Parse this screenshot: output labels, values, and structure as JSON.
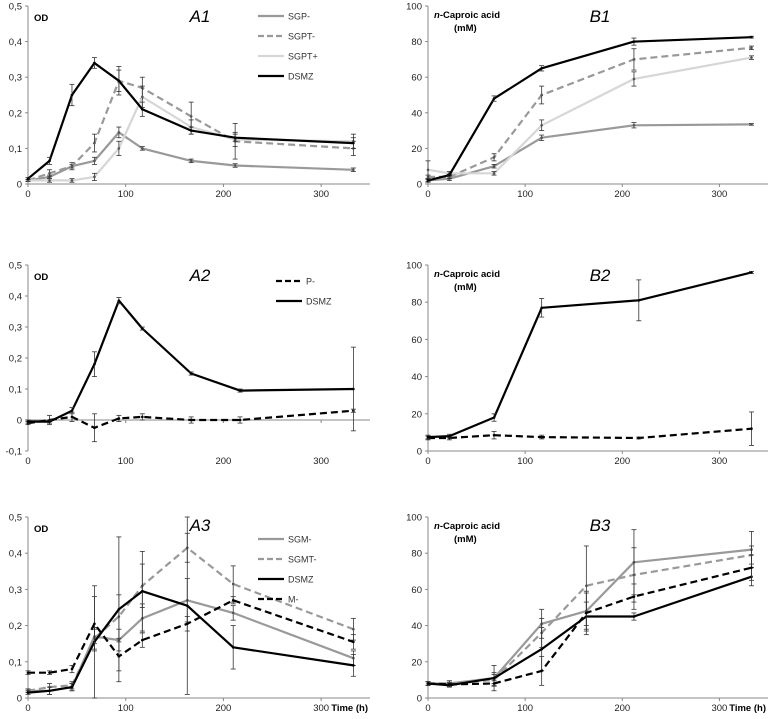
{
  "chart_data": [
    {
      "id": "A1",
      "type": "line",
      "title": "A1",
      "ylabel": "OD",
      "xlabel": "",
      "xlim": [
        0,
        350
      ],
      "ylim": [
        0,
        0.5
      ],
      "xticks": [
        "0",
        "100",
        "200",
        "300"
      ],
      "yticks": [
        "0",
        "0,1",
        "0,2",
        "0,3",
        "0,4",
        "0,5"
      ],
      "legend": "top-right",
      "series": [
        {
          "name": "SGP-",
          "style": "solid-gray",
          "x": [
            0,
            22,
            45,
            68,
            93,
            117,
            167,
            212,
            333
          ],
          "y": [
            0.01,
            0.02,
            0.05,
            0.065,
            0.145,
            0.1,
            0.065,
            0.052,
            0.04
          ],
          "err": [
            0.003,
            0.005,
            0.005,
            0.01,
            0.015,
            0.005,
            0.005,
            0.005,
            0.005
          ]
        },
        {
          "name": "SGPT-",
          "style": "dash-gray",
          "x": [
            0,
            22,
            45,
            68,
            93,
            117,
            167,
            212,
            333
          ],
          "y": [
            0.01,
            0.03,
            0.05,
            0.115,
            0.29,
            0.27,
            0.19,
            0.12,
            0.1
          ],
          "err": [
            0.003,
            0.01,
            0.01,
            0.025,
            0.04,
            0.03,
            0.04,
            0.05,
            0.02
          ]
        },
        {
          "name": "SGPT+",
          "style": "solid-light",
          "x": [
            0,
            22,
            45,
            68,
            93,
            117,
            167,
            212,
            333
          ],
          "y": [
            0.01,
            0.01,
            0.01,
            0.02,
            0.1,
            0.245,
            0.16,
            0.125,
            0.12
          ],
          "err": [
            0.003,
            0.005,
            0.005,
            0.01,
            0.02,
            0.03,
            0.02,
            0.02,
            0.02
          ]
        },
        {
          "name": "DSMZ",
          "style": "solid-black",
          "x": [
            0,
            22,
            45,
            68,
            93,
            117,
            167,
            212,
            333
          ],
          "y": [
            0.015,
            0.065,
            0.25,
            0.34,
            0.29,
            0.21,
            0.15,
            0.13,
            0.115
          ],
          "err": [
            0.003,
            0.01,
            0.03,
            0.015,
            0.03,
            0.02,
            0.01,
            0.01,
            0.015
          ]
        }
      ]
    },
    {
      "id": "B1",
      "type": "line",
      "title": "B1",
      "ylabel": "n-Caproic acid",
      "ylabel_bold_prefix": "n",
      "ylabel2": "(mM)",
      "xlabel": "",
      "xlim": [
        0,
        350
      ],
      "ylim": [
        0,
        100
      ],
      "xticks": [
        "0",
        "100",
        "200",
        "300"
      ],
      "yticks": [
        "0",
        "20",
        "40",
        "60",
        "80",
        "100"
      ],
      "series": [
        {
          "name": "SGP-",
          "style": "solid-gray",
          "x": [
            0,
            22,
            68,
            117,
            212,
            333
          ],
          "y": [
            2,
            3,
            10,
            26,
            33,
            33.5
          ],
          "err": [
            1,
            1,
            1,
            1.5,
            1.5,
            0.5
          ]
        },
        {
          "name": "SGPT-",
          "style": "dash-gray",
          "x": [
            0,
            22,
            68,
            117,
            212,
            333
          ],
          "y": [
            4,
            4,
            15,
            50,
            70,
            76.5
          ],
          "err": [
            1,
            1,
            2,
            5,
            6,
            1
          ]
        },
        {
          "name": "SGPT+",
          "style": "solid-light",
          "x": [
            0,
            22,
            68,
            117,
            212,
            333
          ],
          "y": [
            8,
            6,
            6,
            33,
            59,
            71
          ],
          "err": [
            5,
            1,
            1,
            3,
            4,
            1
          ]
        },
        {
          "name": "DSMZ",
          "style": "solid-black",
          "x": [
            0,
            22,
            68,
            117,
            212,
            333
          ],
          "y": [
            2,
            5,
            48,
            65,
            80,
            82.5
          ],
          "err": [
            0.5,
            0.5,
            1.5,
            1.5,
            2,
            0.5
          ]
        }
      ]
    },
    {
      "id": "A2",
      "type": "line",
      "title": "A2",
      "ylabel": "OD",
      "xlabel": "",
      "xlim": [
        0,
        350
      ],
      "ylim": [
        -0.1,
        0.5
      ],
      "xticks": [
        "0",
        "100",
        "200",
        "300"
      ],
      "yticks": [
        "-0,1",
        "0",
        "0,1",
        "0,2",
        "0,3",
        "0,4",
        "0,5"
      ],
      "legend": "top-right",
      "series": [
        {
          "name": "P-",
          "style": "dash-black",
          "x": [
            0,
            22,
            45,
            68,
            93,
            117,
            167,
            217,
            333
          ],
          "y": [
            -0.01,
            0.0,
            0.01,
            -0.025,
            0.005,
            0.01,
            0.0,
            0.0,
            0.03
          ],
          "err": [
            0.005,
            0.015,
            0.015,
            0.045,
            0.01,
            0.01,
            0.01,
            0.01,
            0.005
          ]
        },
        {
          "name": "DSMZ",
          "style": "solid-black",
          "x": [
            0,
            22,
            45,
            68,
            93,
            117,
            167,
            217,
            333
          ],
          "y": [
            -0.005,
            -0.005,
            0.03,
            0.18,
            0.385,
            0.295,
            0.15,
            0.095,
            0.1
          ],
          "err": [
            0.005,
            0.005,
            0.01,
            0.04,
            0.01,
            0.005,
            0.005,
            0.005,
            0.135
          ]
        }
      ]
    },
    {
      "id": "B2",
      "type": "line",
      "title": "B2",
      "ylabel": "n-Caproic acid",
      "ylabel_bold_prefix": "n",
      "ylabel2": "(mM)",
      "xlabel": "",
      "xlim": [
        0,
        350
      ],
      "ylim": [
        0,
        100
      ],
      "xticks": [
        "0",
        "100",
        "200",
        "300"
      ],
      "yticks": [
        "0",
        "20",
        "40",
        "60",
        "80",
        "100"
      ],
      "series": [
        {
          "name": "P-",
          "style": "dash-black",
          "x": [
            0,
            22,
            68,
            117,
            217,
            333
          ],
          "y": [
            7,
            7,
            8.5,
            7.5,
            7,
            12
          ],
          "err": [
            1,
            1,
            2,
            1,
            0.5,
            9
          ]
        },
        {
          "name": "DSMZ",
          "style": "solid-black",
          "x": [
            0,
            22,
            68,
            117,
            217,
            333
          ],
          "y": [
            7.5,
            8,
            18,
            77,
            81,
            96
          ],
          "err": [
            1,
            1,
            2,
            5,
            11,
            0.5
          ]
        }
      ]
    },
    {
      "id": "A3",
      "type": "line",
      "title": "A3",
      "ylabel": "OD",
      "xlabel": "Time (h)",
      "xlim": [
        0,
        350
      ],
      "ylim": [
        0,
        0.5
      ],
      "xticks": [
        "0",
        "100",
        "200",
        "300"
      ],
      "yticks": [
        "0",
        "0,1",
        "0,2",
        "0,3",
        "0,4",
        "0,5"
      ],
      "legend": "top-right",
      "series": [
        {
          "name": "SGM-",
          "style": "solid-gray",
          "x": [
            0,
            22,
            45,
            68,
            93,
            117,
            163,
            210,
            333
          ],
          "y": [
            0.02,
            0.02,
            0.03,
            0.17,
            0.16,
            0.22,
            0.27,
            0.235,
            0.11
          ],
          "err": [
            0.005,
            0.01,
            0.01,
            0.02,
            0.03,
            0.04,
            0.06,
            0.02,
            0.02
          ]
        },
        {
          "name": "SGMT-",
          "style": "dash-gray",
          "x": [
            0,
            22,
            45,
            68,
            93,
            117,
            163,
            210,
            333
          ],
          "y": [
            0.02,
            0.03,
            0.035,
            0.165,
            0.225,
            0.31,
            0.415,
            0.315,
            0.19
          ],
          "err": [
            0.005,
            0.01,
            0.01,
            0.03,
            0.06,
            0.06,
            0.04,
            0.05,
            0.03
          ]
        },
        {
          "name": "DSMZ",
          "style": "solid-black",
          "x": [
            0,
            22,
            45,
            68,
            93,
            117,
            163,
            210,
            333
          ],
          "y": [
            0.015,
            0.02,
            0.03,
            0.155,
            0.245,
            0.295,
            0.255,
            0.14,
            0.09
          ],
          "err": [
            0.005,
            0.01,
            0.01,
            0.155,
            0.2,
            0.11,
            0.245,
            0.06,
            0.03
          ]
        },
        {
          "name": "M-",
          "style": "dash-black",
          "x": [
            0,
            22,
            45,
            68,
            93,
            117,
            163,
            210,
            333
          ],
          "y": [
            0.07,
            0.07,
            0.08,
            0.205,
            0.115,
            0.16,
            0.205,
            0.27,
            0.155
          ],
          "err": [
            0.005,
            0.005,
            0.01,
            0.075,
            0.04,
            0.02,
            0.02,
            0.01,
            0.02
          ]
        }
      ]
    },
    {
      "id": "B3",
      "type": "line",
      "title": "B3",
      "ylabel": "n-Caproic acid",
      "ylabel_bold_prefix": "n",
      "ylabel2": "(mM)",
      "xlabel": "Time (h)",
      "xlim": [
        0,
        350
      ],
      "ylim": [
        0,
        100
      ],
      "xticks": [
        "0",
        "100",
        "200",
        "300"
      ],
      "yticks": [
        "0",
        "20",
        "40",
        "60",
        "80",
        "100"
      ],
      "series": [
        {
          "name": "SGM-",
          "style": "solid-gray",
          "x": [
            0,
            22,
            68,
            117,
            163,
            212,
            333
          ],
          "y": [
            8,
            8,
            11,
            41,
            48,
            75,
            82
          ],
          "err": [
            1,
            1.5,
            3,
            8,
            10,
            18,
            10
          ]
        },
        {
          "name": "SGMT-",
          "style": "dash-gray",
          "x": [
            0,
            22,
            68,
            117,
            163,
            212,
            333
          ],
          "y": [
            8,
            8,
            10,
            36,
            62,
            68,
            79
          ],
          "err": [
            1,
            1.5,
            3,
            8,
            22,
            15,
            5
          ]
        },
        {
          "name": "DSMZ",
          "style": "solid-black",
          "x": [
            0,
            22,
            68,
            117,
            163,
            212,
            333
          ],
          "y": [
            8,
            7,
            11,
            27,
            45,
            45,
            67
          ],
          "err": [
            1,
            1,
            7,
            12,
            8,
            2,
            5
          ]
        },
        {
          "name": "M-",
          "style": "dash-black",
          "x": [
            0,
            22,
            68,
            117,
            163,
            212,
            333
          ],
          "y": [
            8,
            7.5,
            8,
            15,
            47,
            56,
            72
          ],
          "err": [
            1,
            1,
            1.5,
            8,
            12,
            7,
            7
          ]
        }
      ]
    }
  ],
  "styles": {
    "solid-gray": {
      "color": "#999999",
      "dash": ""
    },
    "dash-gray": {
      "color": "#999999",
      "dash": "7,4"
    },
    "solid-light": {
      "color": "#d6d6d6",
      "dash": ""
    },
    "solid-black": {
      "color": "#000000",
      "dash": ""
    },
    "dash-black": {
      "color": "#000000",
      "dash": "7,4"
    }
  }
}
